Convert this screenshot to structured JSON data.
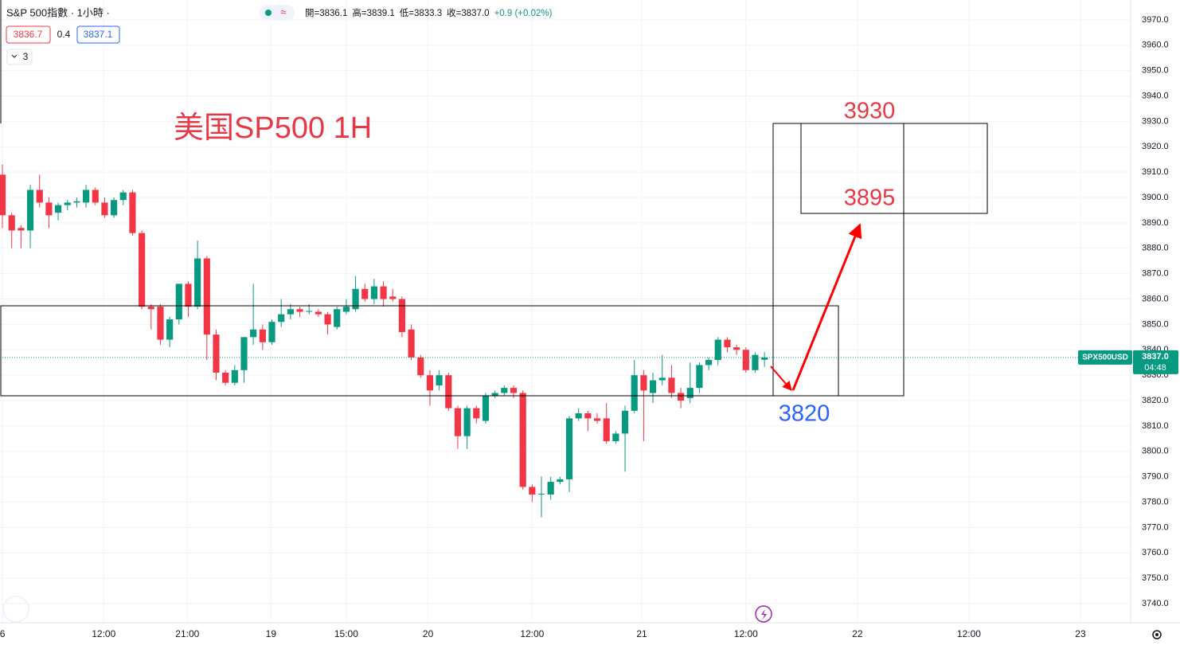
{
  "header": {
    "title": "S&P 500指數 · 1小時 ·",
    "ohlc": [
      "開=3836.1",
      "高=3839.1",
      "低=3833.3",
      "收=3837.0",
      "+0.9 (+0.02%)"
    ],
    "bid": "3836.7",
    "spread": "0.4",
    "ask": "3837.1",
    "indicators": "3"
  },
  "chart_data": {
    "type": "candlestick",
    "up_color": "#089981",
    "down_color": "#f23645",
    "open": [
      3909,
      3893,
      3888,
      3887,
      3903,
      3898,
      3894,
      3897,
      3898,
      3898,
      3903,
      3898,
      3893,
      3899,
      3902,
      3886,
      3857,
      3857,
      3844,
      3852,
      3866,
      3857,
      3876,
      3846,
      3831,
      3827,
      3832,
      3845,
      3848,
      3843,
      3851,
      3854,
      3856,
      3855,
      3855,
      3854,
      3849,
      3855,
      3856,
      3864,
      3860,
      3865,
      3861,
      3860,
      3848,
      3837,
      3830,
      3826,
      3830,
      3817,
      3806,
      3817,
      3812,
      3822,
      3823,
      3825,
      3823,
      3786,
      3783,
      3783,
      3788,
      3789,
      3813,
      3815,
      3813,
      3813,
      3804,
      3807,
      3816,
      3830,
      3823,
      3828,
      3829,
      3823,
      3821,
      3825,
      3834,
      3836,
      3844,
      3841,
      3840,
      3832,
      3836.1
    ],
    "high": [
      3913,
      3894,
      3889,
      3905,
      3909,
      3900,
      3898,
      3899,
      3900,
      3905,
      3904,
      3900,
      3900,
      3903,
      3903,
      3887,
      3858,
      3858,
      3853,
      3866,
      3867,
      3883,
      3877,
      3848,
      3832,
      3834,
      3845,
      3866,
      3850,
      3852,
      3860,
      3858,
      3857,
      3858,
      3856,
      3855,
      3857,
      3860,
      3869,
      3866,
      3868,
      3867,
      3864,
      3861,
      3850,
      3838,
      3832,
      3832,
      3831,
      3818,
      3818,
      3818,
      3823,
      3824,
      3826,
      3826,
      3824,
      3787,
      3790,
      3790,
      3790,
      3814,
      3817,
      3816,
      3815,
      3819,
      3808,
      3818,
      3836,
      3832,
      3831,
      3838,
      3834,
      3825,
      3835,
      3835,
      3837,
      3845,
      3845,
      3842,
      3841,
      3839,
      3839.1
    ],
    "low": [
      3888,
      3880,
      3880,
      3880,
      3896,
      3888,
      3891,
      3895,
      3896,
      3896,
      3897,
      3892,
      3892,
      3897,
      3885,
      3856,
      3848,
      3842,
      3841,
      3850,
      3853,
      3856,
      3836,
      3828,
      3826,
      3826,
      3827,
      3842,
      3840,
      3842,
      3849,
      3852,
      3853,
      3854,
      3853,
      3846,
      3848,
      3854,
      3855,
      3859,
      3858,
      3857,
      3859,
      3845,
      3836,
      3829,
      3818,
      3824,
      3816,
      3801,
      3801,
      3811,
      3811,
      3821,
      3822,
      3821,
      3785,
      3780,
      3774,
      3781,
      3787,
      3784,
      3812,
      3808,
      3811,
      3803,
      3803,
      3792,
      3815,
      3804,
      3819,
      3826,
      3821,
      3817,
      3819,
      3823,
      3832,
      3834,
      3839,
      3838,
      3831,
      3831,
      3833.3
    ],
    "close": [
      3893,
      3887,
      3887,
      3903,
      3898,
      3893,
      3897,
      3898,
      3898.5,
      3903,
      3898,
      3893,
      3899,
      3902,
      3886,
      3857,
      3856,
      3844,
      3852,
      3866,
      3857,
      3876,
      3846,
      3831,
      3827,
      3832,
      3845,
      3848,
      3843,
      3851,
      3854,
      3856,
      3855,
      3855.3,
      3854,
      3850,
      3856,
      3857,
      3864,
      3860,
      3865,
      3860,
      3860,
      3847,
      3837,
      3830,
      3824,
      3830,
      3817,
      3806,
      3817,
      3813,
      3822,
      3823,
      3825,
      3823,
      3786,
      3783,
      3783.3,
      3788,
      3789,
      3813,
      3815,
      3813,
      3812,
      3804,
      3807,
      3816,
      3830,
      3824,
      3828,
      3829,
      3823,
      3820,
      3825,
      3834,
      3836,
      3844,
      3841,
      3840,
      3832,
      3838,
      3837.0
    ],
    "xlim": [
      -0.26,
      121.4
    ],
    "xticks": [
      {
        "value": 0,
        "label": "6"
      },
      {
        "value": 10.9,
        "label": "12:00"
      },
      {
        "value": 19.9,
        "label": "21:00"
      },
      {
        "value": 28.9,
        "label": "19"
      },
      {
        "value": 37,
        "label": "15:00"
      },
      {
        "value": 45.8,
        "label": "20"
      },
      {
        "value": 57,
        "label": "12:00"
      },
      {
        "value": 68.8,
        "label": "21"
      },
      {
        "value": 80,
        "label": "12:00"
      },
      {
        "value": 92,
        "label": "22"
      },
      {
        "value": 104,
        "label": "12:00"
      },
      {
        "value": 116,
        "label": "23"
      }
    ],
    "ylim": [
      3732.5,
      3977.8
    ],
    "yticks": [
      {
        "value": 3740,
        "label": "3740.0"
      },
      {
        "value": 3750,
        "label": "3750.0"
      },
      {
        "value": 3760,
        "label": "3760.0"
      },
      {
        "value": 3770,
        "label": "3770.0"
      },
      {
        "value": 3780,
        "label": "3780.0"
      },
      {
        "value": 3790,
        "label": "3790.0"
      },
      {
        "value": 3800,
        "label": "3800.0"
      },
      {
        "value": 3810,
        "label": "3810.0"
      },
      {
        "value": 3820,
        "label": "3820.0"
      },
      {
        "value": 3830,
        "label": "3830.0"
      },
      {
        "value": 3840,
        "label": "3840.0"
      },
      {
        "value": 3850,
        "label": "3850.0"
      },
      {
        "value": 3860,
        "label": "3860.0"
      },
      {
        "value": 3870,
        "label": "3870.0"
      },
      {
        "value": 3880,
        "label": "3880.0"
      },
      {
        "value": 3890,
        "label": "3890.0"
      },
      {
        "value": 3900,
        "label": "3900.0"
      },
      {
        "value": 3910,
        "label": "3910.0"
      },
      {
        "value": 3920,
        "label": "3920.0"
      },
      {
        "value": 3930,
        "label": "3930.0"
      },
      {
        "value": 3940,
        "label": "3940.0"
      },
      {
        "value": 3950,
        "label": "3950.0"
      },
      {
        "value": 3960,
        "label": "3960.0"
      },
      {
        "value": 3970,
        "label": "3970.0"
      }
    ],
    "grid": true,
    "annotations": {
      "title": "美国SP500 1H",
      "target_high": "3930",
      "target_mid": "3895",
      "support": "3820"
    },
    "symbol": "SPX500USD",
    "last_price_label": "3837.0",
    "countdown": "04:48"
  }
}
